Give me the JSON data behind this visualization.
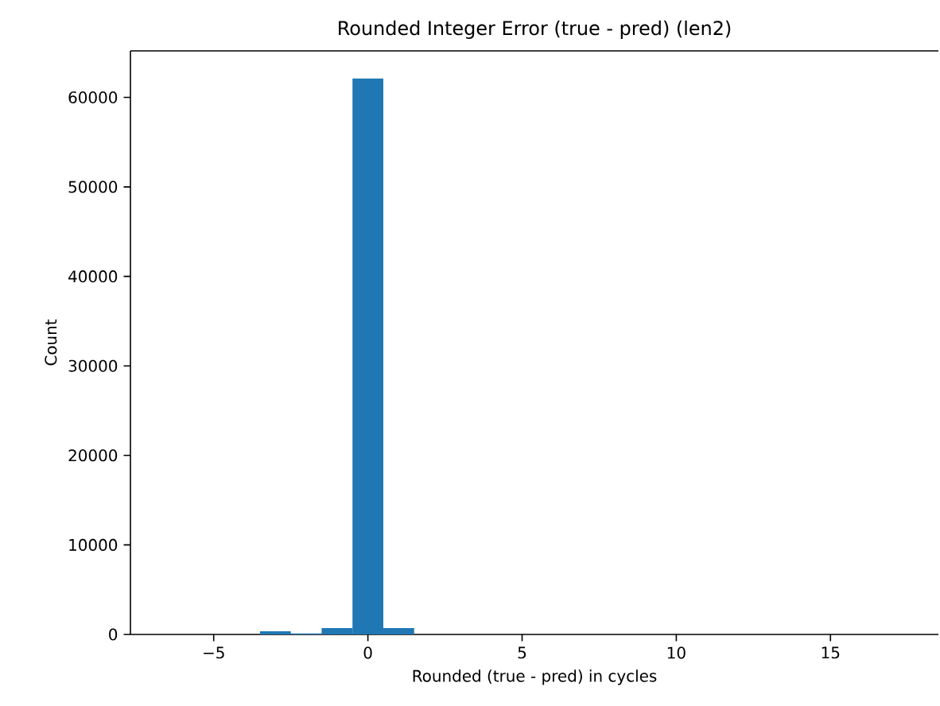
{
  "chart_data": {
    "type": "histogram",
    "title": "Rounded Integer Error (true - pred) (len2)",
    "xlabel": "Rounded (true - pred) in cycles",
    "ylabel": "Count",
    "bins": [
      -6.5,
      -5.5,
      -4.5,
      -3.5,
      -2.5,
      -1.5,
      -0.5,
      0.5,
      1.5,
      2.5,
      3.5,
      4.5,
      5.5,
      6.5,
      7.5,
      8.5,
      9.5,
      10.5,
      11.5,
      12.5,
      13.5,
      14.5,
      15.5,
      16.5,
      17.5
    ],
    "values": [
      0,
      0,
      0,
      350,
      100,
      700,
      62100,
      700,
      0,
      0,
      0,
      0,
      0,
      0,
      0,
      0,
      0,
      0,
      0,
      0,
      0,
      0,
      0,
      0
    ],
    "color": "#1f77b4",
    "xlim": [
      -7.7,
      18.5
    ],
    "ylim": [
      0,
      65200
    ],
    "xticks": [
      {
        "value": -5,
        "label": "−5"
      },
      0,
      5,
      10,
      15
    ],
    "yticks": [
      0,
      10000,
      20000,
      30000,
      40000,
      50000,
      60000
    ],
    "grid": false
  }
}
